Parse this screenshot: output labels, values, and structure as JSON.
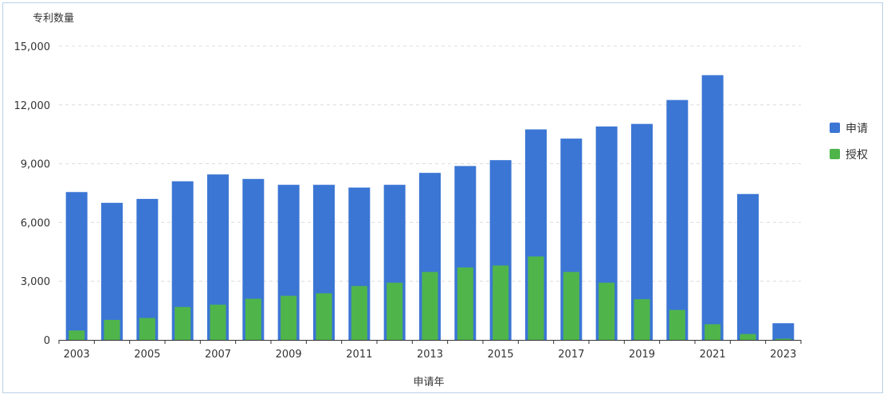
{
  "chart_data": {
    "type": "bar",
    "ylabel": "专利数量",
    "xlabel": "申请年",
    "ylim": [
      0,
      15000
    ],
    "yticks": [
      0,
      3000,
      6000,
      9000,
      12000,
      15000
    ],
    "ytick_labels": [
      "0",
      "3,000",
      "6,000",
      "9,000",
      "12,000",
      "15,000"
    ],
    "categories": [
      "2003",
      "2004",
      "2005",
      "2006",
      "2007",
      "2008",
      "2009",
      "2010",
      "2011",
      "2012",
      "2013",
      "2014",
      "2015",
      "2016",
      "2017",
      "2018",
      "2019",
      "2020",
      "2021",
      "2022",
      "2023"
    ],
    "xtick_labels": [
      "2003",
      "",
      "2005",
      "",
      "2007",
      "",
      "2009",
      "",
      "2011",
      "",
      "2013",
      "",
      "2015",
      "",
      "2017",
      "",
      "2019",
      "",
      "2021",
      "",
      "2023"
    ],
    "series": [
      {
        "name": "申请",
        "color": "#3b76d4",
        "values": [
          7550,
          7000,
          7200,
          8100,
          8450,
          8220,
          7920,
          7920,
          7780,
          7920,
          8530,
          8880,
          9180,
          10750,
          10280,
          10900,
          11030,
          12250,
          13520,
          7450,
          850
        ]
      },
      {
        "name": "授权",
        "color": "#4fb54b",
        "values": [
          480,
          1020,
          1120,
          1680,
          1800,
          2100,
          2250,
          2380,
          2750,
          2920,
          3470,
          3700,
          3800,
          4260,
          3470,
          2920,
          2080,
          1530,
          800,
          300,
          60
        ]
      }
    ],
    "legend_position": "right",
    "grid": true
  }
}
